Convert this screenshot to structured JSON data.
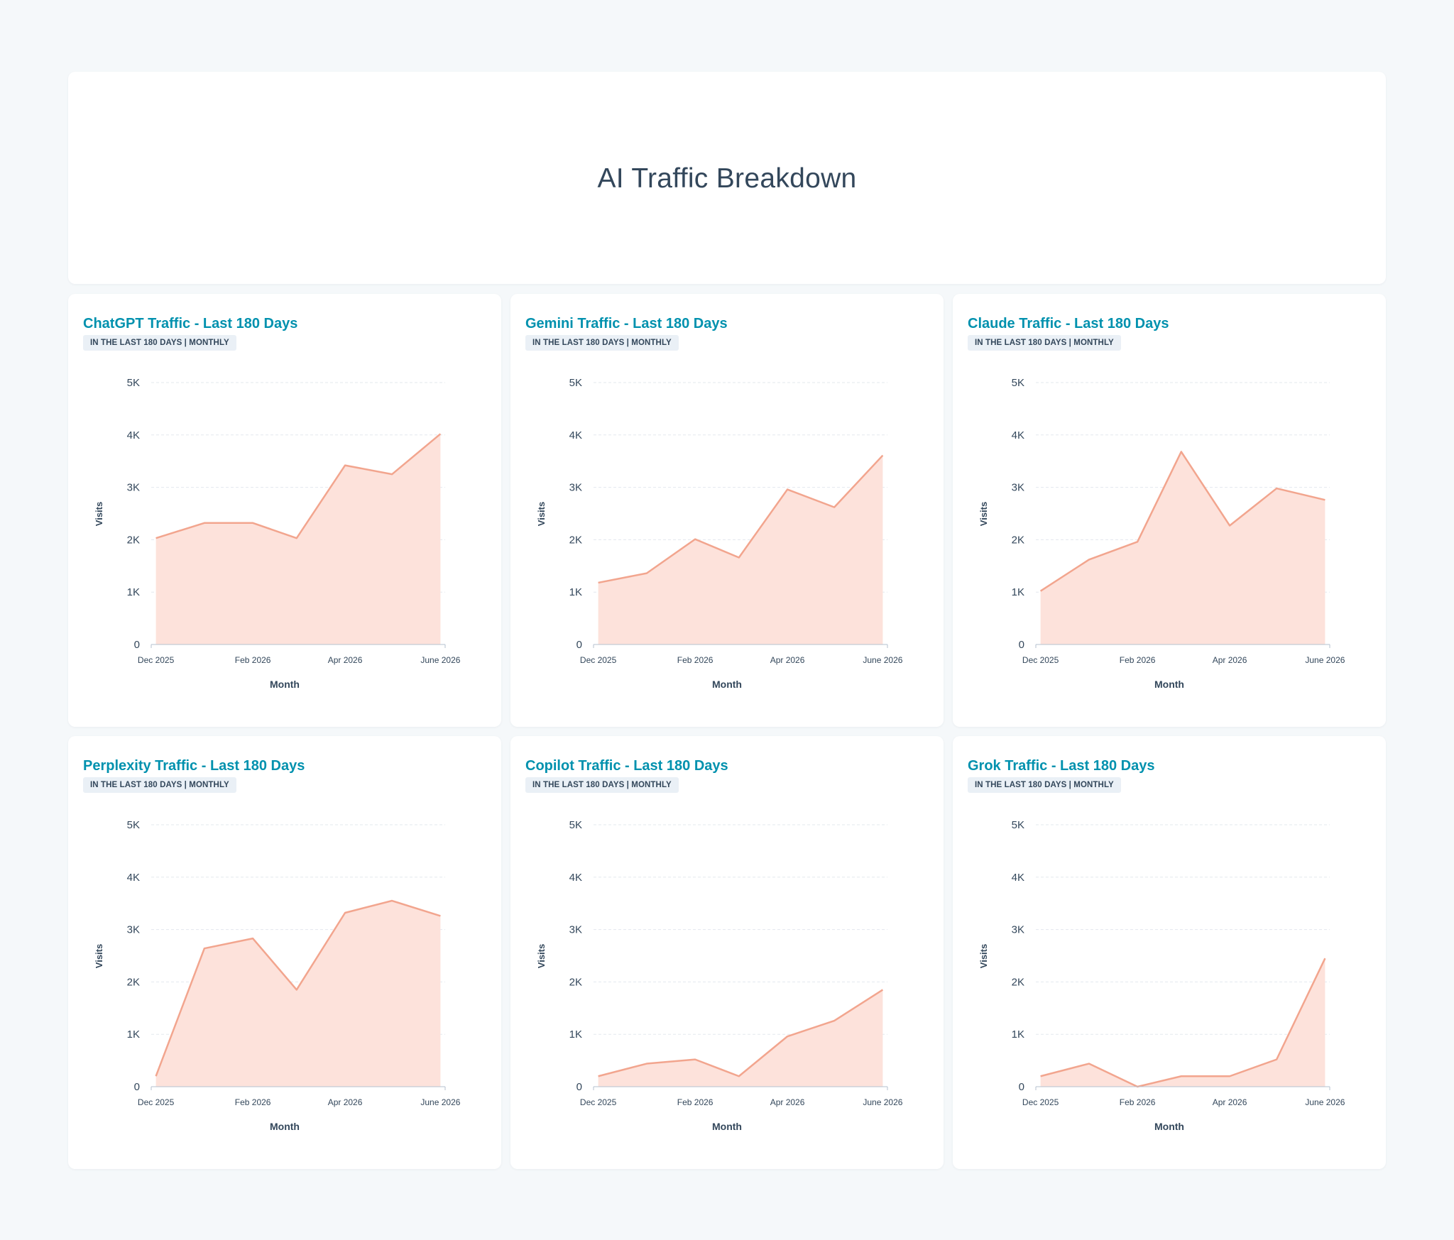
{
  "page": {
    "title": "AI Traffic Breakdown"
  },
  "colors": {
    "title_accent": "#0091ae",
    "area_fill": "#fde2db",
    "line": "#f2a58e",
    "grid": "#e3e8ee",
    "axis": "#b4c1cf",
    "text": "#33475b"
  },
  "charts": [
    {
      "title": "ChatGPT Traffic - Last 180 Days",
      "badge": "IN THE LAST 180 DAYS | MONTHLY",
      "xlabel": "Month",
      "ylabel": "Visits",
      "ytick_labels": [
        "0",
        "1K",
        "2K",
        "3K",
        "4K",
        "5K"
      ],
      "xtick_labels": [
        "Dec 2025",
        "Feb 2026",
        "Apr 2026",
        "June 2026"
      ]
    },
    {
      "title": "Gemini Traffic - Last 180 Days",
      "badge": "IN THE LAST 180 DAYS | MONTHLY",
      "xlabel": "Month",
      "ylabel": "Visits",
      "ytick_labels": [
        "0",
        "1K",
        "2K",
        "3K",
        "4K",
        "5K"
      ],
      "xtick_labels": [
        "Dec 2025",
        "Feb 2026",
        "Apr 2026",
        "June 2026"
      ]
    },
    {
      "title": "Claude Traffic - Last 180 Days",
      "badge": "IN THE LAST 180 DAYS | MONTHLY",
      "xlabel": "Month",
      "ylabel": "Visits",
      "ytick_labels": [
        "0",
        "1K",
        "2K",
        "3K",
        "4K",
        "5K"
      ],
      "xtick_labels": [
        "Dec 2025",
        "Feb 2026",
        "Apr 2026",
        "June 2026"
      ]
    },
    {
      "title": "Perplexity Traffic - Last 180 Days",
      "badge": "IN THE LAST 180 DAYS | MONTHLY",
      "xlabel": "Month",
      "ylabel": "Visits",
      "ytick_labels": [
        "0",
        "1K",
        "2K",
        "3K",
        "4K",
        "5K"
      ],
      "xtick_labels": [
        "Dec 2025",
        "Feb 2026",
        "Apr 2026",
        "June 2026"
      ]
    },
    {
      "title": "Copilot Traffic - Last 180 Days",
      "badge": "IN THE LAST 180 DAYS | MONTHLY",
      "xlabel": "Month",
      "ylabel": "Visits",
      "ytick_labels": [
        "0",
        "1K",
        "2K",
        "3K",
        "4K",
        "5K"
      ],
      "xtick_labels": [
        "Dec 2025",
        "Feb 2026",
        "Apr 2026",
        "June 2026"
      ]
    },
    {
      "title": "Grok Traffic - Last 180 Days",
      "badge": "IN THE LAST 180 DAYS | MONTHLY",
      "xlabel": "Month",
      "ylabel": "Visits",
      "ytick_labels": [
        "0",
        "1K",
        "2K",
        "3K",
        "4K",
        "5K"
      ],
      "xtick_labels": [
        "Dec 2025",
        "Feb 2026",
        "Apr 2026",
        "June 2026"
      ]
    }
  ],
  "chart_data": [
    {
      "type": "area",
      "title": "ChatGPT Traffic - Last 180 Days",
      "xlabel": "Month",
      "ylabel": "Visits",
      "x": [
        "2025-12-01",
        "2026-01-01",
        "2026-02-01",
        "2026-03-01",
        "2026-04-01",
        "2026-05-01",
        "2026-06-01"
      ],
      "x_range": [
        "2025-11-28",
        "2026-06-04"
      ],
      "values": [
        2030,
        2320,
        2320,
        2030,
        3420,
        3250,
        4020
      ],
      "ylim": [
        0,
        5000
      ],
      "grid": true,
      "legend": "none"
    },
    {
      "type": "area",
      "title": "Gemini Traffic - Last 180 Days",
      "xlabel": "Month",
      "ylabel": "Visits",
      "x": [
        "2025-12-01",
        "2026-01-01",
        "2026-02-01",
        "2026-03-01",
        "2026-04-01",
        "2026-05-01",
        "2026-06-01"
      ],
      "x_range": [
        "2025-11-28",
        "2026-06-04"
      ],
      "values": [
        1180,
        1360,
        2010,
        1660,
        2960,
        2620,
        3610
      ],
      "ylim": [
        0,
        5000
      ],
      "grid": true,
      "legend": "none"
    },
    {
      "type": "area",
      "title": "Claude Traffic - Last 180 Days",
      "xlabel": "Month",
      "ylabel": "Visits",
      "x": [
        "2025-12-01",
        "2026-01-01",
        "2026-02-01",
        "2026-03-01",
        "2026-04-01",
        "2026-05-01",
        "2026-06-01"
      ],
      "x_range": [
        "2025-11-28",
        "2026-06-04"
      ],
      "values": [
        1020,
        1620,
        1960,
        3680,
        2270,
        2980,
        2760
      ],
      "ylim": [
        0,
        5000
      ],
      "grid": true,
      "legend": "none"
    },
    {
      "type": "area",
      "title": "Perplexity Traffic - Last 180 Days",
      "xlabel": "Month",
      "ylabel": "Visits",
      "x": [
        "2025-12-01",
        "2026-01-01",
        "2026-02-01",
        "2026-03-01",
        "2026-04-01",
        "2026-05-01",
        "2026-06-01"
      ],
      "x_range": [
        "2025-11-28",
        "2026-06-04"
      ],
      "values": [
        200,
        2640,
        2830,
        1850,
        3320,
        3550,
        3260
      ],
      "ylim": [
        0,
        5000
      ],
      "grid": true,
      "legend": "none"
    },
    {
      "type": "area",
      "title": "Copilot Traffic - Last 180 Days",
      "xlabel": "Month",
      "ylabel": "Visits",
      "x": [
        "2025-12-01",
        "2026-01-01",
        "2026-02-01",
        "2026-03-01",
        "2026-04-01",
        "2026-05-01",
        "2026-06-01"
      ],
      "x_range": [
        "2025-11-28",
        "2026-06-04"
      ],
      "values": [
        200,
        440,
        520,
        200,
        960,
        1260,
        1850
      ],
      "ylim": [
        0,
        5000
      ],
      "grid": true,
      "legend": "none"
    },
    {
      "type": "area",
      "title": "Grok Traffic - Last 180 Days",
      "xlabel": "Month",
      "ylabel": "Visits",
      "x": [
        "2025-12-01",
        "2026-01-01",
        "2026-02-01",
        "2026-03-01",
        "2026-04-01",
        "2026-05-01",
        "2026-06-01"
      ],
      "x_range": [
        "2025-11-28",
        "2026-06-04"
      ],
      "values": [
        200,
        440,
        0,
        200,
        200,
        520,
        2450
      ],
      "ylim": [
        0,
        5000
      ],
      "grid": true,
      "legend": "none"
    }
  ]
}
